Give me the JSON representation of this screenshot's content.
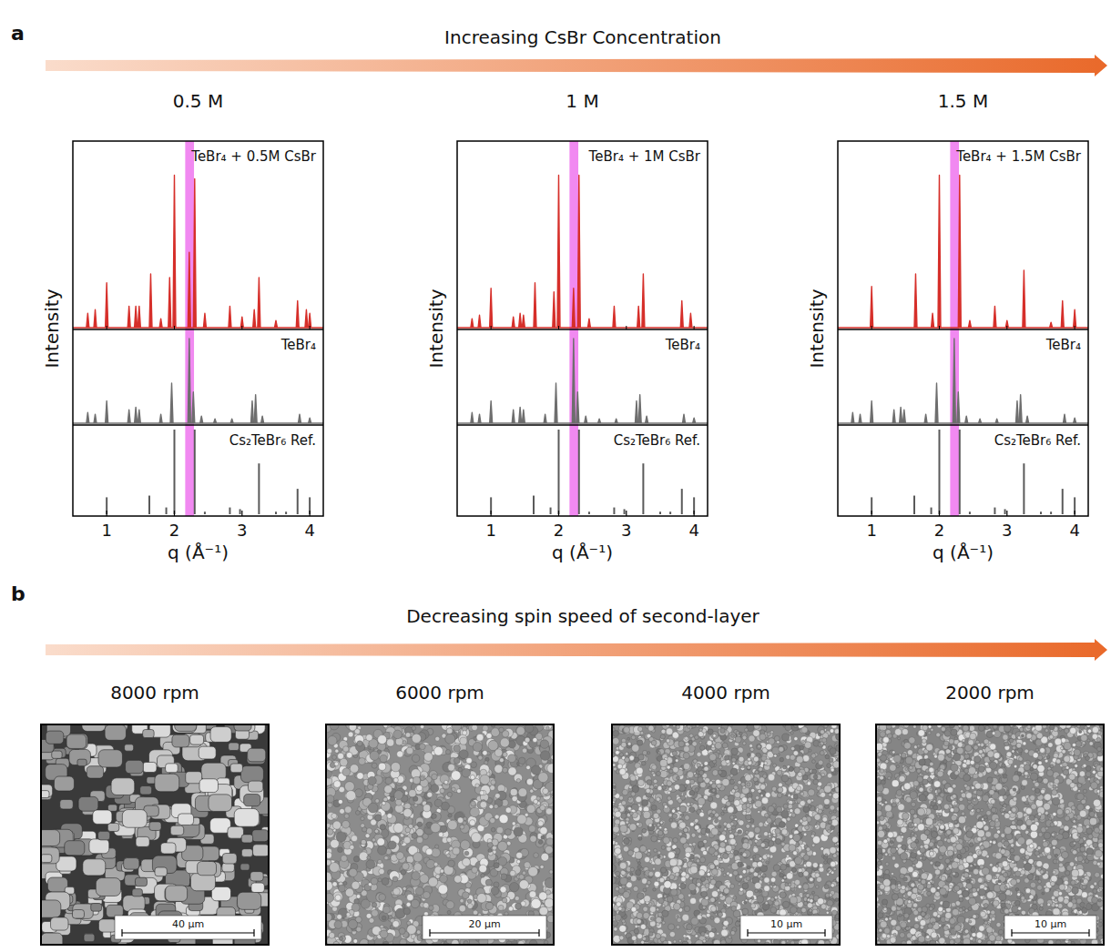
{
  "figure": {
    "panel_a_label": "a",
    "panel_a_heading": "Increasing CsBr Concentration",
    "panel_b_label": "b",
    "panel_b_heading": "Decreasing spin speed of second-layer",
    "panel_b_images": [
      {
        "title": "8000 rpm",
        "scale_bar": "40 μm"
      },
      {
        "title": "6000 rpm",
        "scale_bar": "20 μm"
      },
      {
        "title": "4000 rpm",
        "scale_bar": "10 μm"
      },
      {
        "title": "2000 rpm",
        "scale_bar": "10 μm"
      }
    ]
  },
  "chart_data": [
    {
      "type": "spectrum",
      "title": "0.5 M",
      "xlabel": "q (Å⁻¹)",
      "ylabel": "Intensity",
      "xlim": [
        0.5,
        4.2
      ],
      "xticks": [
        1,
        2,
        3,
        4
      ],
      "ylim": [
        0,
        100
      ],
      "tick_labels": "x",
      "grid": false,
      "highlight": [
        2.16,
        2.29
      ],
      "series": [
        {
          "name": "TeBr₄ + 0.5M CsBr",
          "type": "peaks",
          "color": "#d62f2a",
          "x": [
            0.72,
            0.83,
            1.0,
            1.33,
            1.43,
            1.48,
            1.65,
            1.8,
            1.93,
            2.0,
            2.22,
            2.3,
            2.45,
            2.82,
            3.0,
            3.18,
            3.25,
            3.5,
            3.82,
            3.95,
            4.0
          ],
          "values": [
            8,
            10,
            25,
            12,
            12,
            12,
            30,
            5,
            28,
            85,
            42,
            83,
            8,
            12,
            6,
            10,
            28,
            4,
            15,
            10,
            8
          ]
        },
        {
          "name": "TeBr₄",
          "type": "peaks",
          "color": "#6e6e6e",
          "x": [
            0.72,
            0.83,
            1.0,
            1.33,
            1.43,
            1.48,
            1.8,
            1.96,
            2.22,
            2.28,
            2.4,
            2.6,
            2.85,
            3.15,
            3.2,
            3.3,
            3.85,
            4.0
          ],
          "values": [
            12,
            10,
            25,
            15,
            18,
            15,
            10,
            45,
            95,
            35,
            8,
            5,
            5,
            25,
            32,
            8,
            10,
            6
          ]
        },
        {
          "name": "Cs₂TeBr₆ Ref.",
          "type": "stem",
          "color": "#5a5a5a",
          "x": [
            1.0,
            1.63,
            1.88,
            2.0,
            2.3,
            2.45,
            2.82,
            2.97,
            3.25,
            3.5,
            3.65,
            3.82,
            4.0
          ],
          "values": [
            20,
            22,
            8,
            100,
            100,
            3,
            8,
            6,
            60,
            3,
            3,
            30,
            20
          ]
        }
      ]
    },
    {
      "type": "spectrum",
      "title": "1 M",
      "xlabel": "q (Å⁻¹)",
      "ylabel": "Intensity",
      "xlim": [
        0.5,
        4.2
      ],
      "xticks": [
        1,
        2,
        3,
        4
      ],
      "ylim": [
        0,
        100
      ],
      "tick_labels": "x",
      "grid": false,
      "highlight": [
        2.16,
        2.29
      ],
      "series": [
        {
          "name": "TeBr₄ + 1M CsBr",
          "type": "peaks",
          "color": "#d62f2a",
          "x": [
            0.72,
            0.83,
            1.0,
            1.33,
            1.43,
            1.48,
            1.65,
            1.93,
            2.0,
            2.22,
            2.3,
            2.45,
            2.82,
            3.18,
            3.25,
            3.82,
            3.95
          ],
          "values": [
            5,
            7,
            22,
            6,
            8,
            7,
            25,
            20,
            85,
            22,
            85,
            5,
            12,
            12,
            30,
            15,
            8
          ]
        },
        {
          "name": "TeBr₄",
          "type": "peaks",
          "color": "#6e6e6e",
          "x": [
            0.72,
            0.83,
            1.0,
            1.33,
            1.43,
            1.48,
            1.8,
            1.96,
            2.22,
            2.28,
            2.4,
            2.6,
            2.85,
            3.15,
            3.2,
            3.3,
            3.85,
            4.0
          ],
          "values": [
            12,
            10,
            25,
            15,
            18,
            15,
            10,
            45,
            95,
            35,
            8,
            5,
            5,
            25,
            32,
            8,
            10,
            6
          ]
        },
        {
          "name": "Cs₂TeBr₆ Ref.",
          "type": "stem",
          "color": "#5a5a5a",
          "x": [
            1.0,
            1.63,
            1.88,
            2.0,
            2.3,
            2.45,
            2.82,
            2.97,
            3.25,
            3.5,
            3.65,
            3.82,
            4.0
          ],
          "values": [
            20,
            22,
            8,
            100,
            100,
            3,
            8,
            6,
            60,
            3,
            3,
            30,
            20
          ]
        }
      ]
    },
    {
      "type": "spectrum",
      "title": "1.5 M",
      "xlabel": "q (Å⁻¹)",
      "ylabel": "Intensity",
      "xlim": [
        0.5,
        4.2
      ],
      "xticks": [
        1,
        2,
        3,
        4
      ],
      "ylim": [
        0,
        100
      ],
      "tick_labels": "x",
      "grid": false,
      "highlight": [
        2.16,
        2.29
      ],
      "series": [
        {
          "name": "TeBr₄ + 1.5M CsBr",
          "type": "peaks",
          "color": "#d62f2a",
          "x": [
            1.0,
            1.65,
            1.9,
            2.0,
            2.3,
            2.45,
            2.82,
            3.0,
            3.25,
            3.65,
            3.82,
            4.0
          ],
          "values": [
            23,
            30,
            8,
            85,
            85,
            4,
            12,
            4,
            32,
            3,
            15,
            10
          ]
        },
        {
          "name": "TeBr₄",
          "type": "peaks",
          "color": "#6e6e6e",
          "x": [
            0.72,
            0.83,
            1.0,
            1.33,
            1.43,
            1.48,
            1.8,
            1.96,
            2.22,
            2.28,
            2.4,
            2.6,
            2.85,
            3.15,
            3.2,
            3.3,
            3.85,
            4.0
          ],
          "values": [
            12,
            10,
            25,
            15,
            18,
            15,
            10,
            45,
            95,
            35,
            8,
            5,
            5,
            25,
            32,
            8,
            10,
            6
          ]
        },
        {
          "name": "Cs₂TeBr₆ Ref.",
          "type": "stem",
          "color": "#5a5a5a",
          "x": [
            1.0,
            1.63,
            1.88,
            2.0,
            2.3,
            2.45,
            2.82,
            2.97,
            3.25,
            3.5,
            3.65,
            3.82,
            4.0
          ],
          "values": [
            20,
            22,
            8,
            100,
            100,
            3,
            8,
            6,
            60,
            3,
            3,
            30,
            20
          ]
        }
      ]
    }
  ]
}
